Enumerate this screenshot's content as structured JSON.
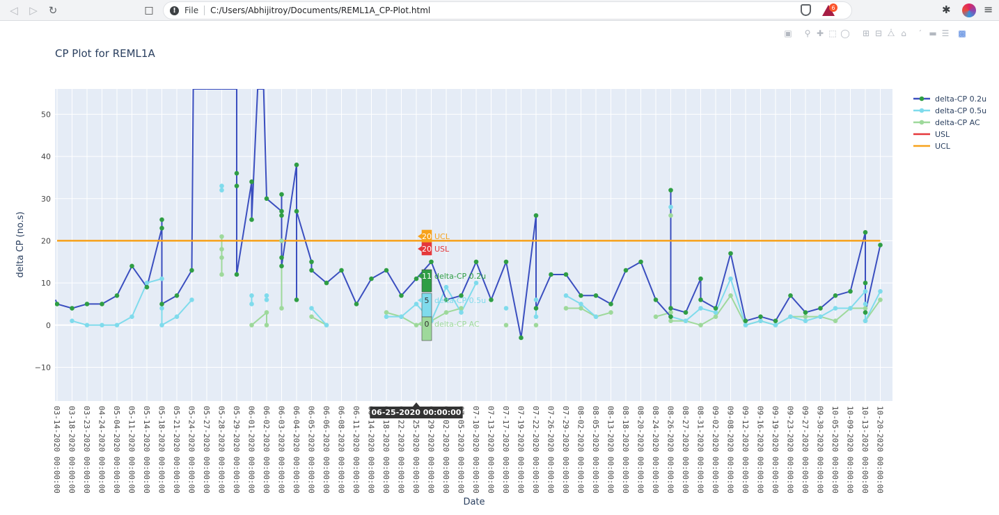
{
  "browser": {
    "back_icon": "arrow-left-icon",
    "forward_icon": "arrow-right-icon",
    "reload_icon": "reload-icon",
    "bookmark_icon": "bookmark-icon",
    "info_icon": "info-icon",
    "scheme_label": "File",
    "url": "C:/Users/Abhijitroy/Documents/REML1A_CP-Plot.html",
    "rewards_badge": "6"
  },
  "modebar": {
    "buttons": [
      "camera-icon",
      "zoom-icon",
      "pan-icon",
      "box-select-icon",
      "lasso-select-icon",
      "zoom-in-icon",
      "zoom-out-icon",
      "autoscale-icon",
      "reset-axes-icon",
      "spike-lines-icon",
      "hover-closest-icon",
      "hover-compare-icon",
      "plotly-logo-icon"
    ]
  },
  "plot": {
    "title": "CP Plot for REML1A",
    "hover_x_label": "06-25-2020 00:00:00"
  },
  "colors": {
    "delta_cp_02u": "#3a4ebf",
    "delta_cp_02u_marker": "#2f9e44",
    "delta_cp_05u": "#7fdbec",
    "delta_cp_ac": "#9ed99b",
    "usl": "#e5383b",
    "ucl": "#f7a21b",
    "plot_bg": "#e5ecf6"
  },
  "chart_data": {
    "type": "line",
    "title": "CP Plot for REML1A",
    "xlabel": "Date",
    "ylabel": "delta CP (no.s)",
    "ylim": [
      -18,
      56
    ],
    "yticks": [
      -10,
      0,
      10,
      20,
      30,
      40,
      50
    ],
    "grid": true,
    "legend_position": "top-right",
    "categories": [
      "03-14-2020 00:00:00",
      "03-18-2020 00:00:00",
      "03-23-2020 00:00:00",
      "04-24-2020 00:00:00",
      "05-04-2020 00:00:00",
      "05-11-2020 00:00:00",
      "05-14-2020 00:00:00",
      "05-18-2020 00:00:00",
      "05-21-2020 00:00:00",
      "05-24-2020 00:00:00",
      "05-27-2020 00:00:00",
      "05-28-2020 00:00:00",
      "05-29-2020 00:00:00",
      "06-01-2020 00:00:00",
      "06-02-2020 00:00:00",
      "06-03-2020 00:00:00",
      "06-04-2020 00:00:00",
      "06-05-2020 00:00:00",
      "06-06-2020 00:00:00",
      "06-08-2020 00:00:00",
      "06-11-2020 00:00:00",
      "06-14-2020 00:00:00",
      "06-18-2020 00:00:00",
      "06-22-2020 00:00:00",
      "06-25-2020 00:00:00",
      "06-29-2020 00:00:00",
      "07-02-2020 00:00:00",
      "07-05-2020 00:00:00",
      "07-10-2020 00:00:00",
      "07-13-2020 00:00:00",
      "07-17-2020 00:00:00",
      "07-19-2020 00:00:00",
      "07-22-2020 00:00:00",
      "07-26-2020 00:00:00",
      "07-29-2020 00:00:00",
      "08-02-2020 00:00:00",
      "08-05-2020 00:00:00",
      "08-13-2020 00:00:00",
      "08-18-2020 00:00:00",
      "08-20-2020 00:00:00",
      "08-24-2020 00:00:00",
      "08-26-2020 00:00:00",
      "08-27-2020 00:00:00",
      "08-31-2020 00:00:00",
      "09-02-2020 00:00:00",
      "09-08-2020 00:00:00",
      "09-12-2020 00:00:00",
      "09-16-2020 00:00:00",
      "09-19-2020 00:00:00",
      "09-23-2020 00:00:00",
      "09-27-2020 00:00:00",
      "09-30-2020 00:00:00",
      "10-05-2020 00:00:00",
      "10-09-2020 00:00:00",
      "10-13-2020 00:00:00",
      "10-20-2020 00:00:00"
    ],
    "x_extent": [
      -0.1,
      55.75
    ],
    "series": [
      {
        "name": "delta-CP 0.2u",
        "points": [
          [
            -0.1,
            6
          ],
          [
            0,
            5
          ],
          [
            1,
            4
          ],
          [
            2,
            5
          ],
          [
            3,
            5
          ],
          [
            4,
            7
          ],
          [
            5,
            14
          ],
          [
            6,
            9
          ],
          [
            7,
            23
          ],
          [
            7,
            25
          ],
          [
            7,
            5
          ],
          [
            8,
            7
          ],
          [
            9,
            13
          ],
          [
            9.1,
            56
          ],
          [
            12,
            56
          ],
          [
            12,
            36
          ],
          [
            12,
            33
          ],
          [
            12,
            12
          ],
          [
            13,
            34
          ],
          [
            13,
            25
          ],
          [
            13.4,
            56
          ],
          [
            13.8,
            56
          ],
          [
            14,
            30
          ],
          [
            15,
            27
          ],
          [
            15,
            31
          ],
          [
            15,
            26
          ],
          [
            15,
            16
          ],
          [
            15,
            14
          ],
          [
            16,
            38
          ],
          [
            16,
            6
          ],
          [
            16,
            27
          ],
          [
            17,
            15
          ],
          [
            17,
            13
          ],
          [
            18,
            10
          ],
          [
            19,
            13
          ],
          [
            20,
            5
          ],
          [
            21,
            11
          ],
          [
            22,
            13
          ],
          [
            23,
            7
          ],
          [
            24,
            11
          ],
          [
            25,
            15
          ],
          [
            26,
            6
          ],
          [
            27,
            7
          ],
          [
            28,
            15
          ],
          [
            29,
            6
          ],
          [
            30,
            15
          ],
          [
            31,
            -3
          ],
          [
            32,
            26
          ],
          [
            32,
            4
          ],
          [
            33,
            12
          ],
          [
            34,
            12
          ],
          [
            35,
            7
          ],
          [
            36,
            7
          ],
          [
            37,
            5
          ],
          [
            38,
            13
          ],
          [
            39,
            15
          ],
          [
            40,
            6
          ],
          [
            41,
            2
          ],
          [
            41,
            32
          ],
          [
            41,
            4
          ],
          [
            42,
            3
          ],
          [
            43,
            11
          ],
          [
            43,
            6
          ],
          [
            44,
            4
          ],
          [
            45,
            17
          ],
          [
            46,
            1
          ],
          [
            47,
            2
          ],
          [
            48,
            1
          ],
          [
            49,
            7
          ],
          [
            50,
            3
          ],
          [
            51,
            4
          ],
          [
            52,
            7
          ],
          [
            53,
            8
          ],
          [
            54,
            22
          ],
          [
            54,
            10
          ],
          [
            54,
            3
          ],
          [
            55,
            19
          ]
        ]
      },
      {
        "name": "delta-CP 0.5u",
        "points": [
          [
            1,
            1
          ],
          [
            2,
            0
          ],
          [
            3,
            0
          ],
          [
            4,
            0
          ],
          [
            5,
            2
          ],
          [
            6,
            10
          ],
          [
            7,
            11
          ],
          [
            7,
            4
          ],
          [
            7,
            0
          ],
          [
            8,
            2
          ],
          [
            9,
            6
          ],
          [
            null,
            null
          ],
          [
            11,
            33
          ],
          [
            11,
            32
          ],
          [
            null,
            null
          ],
          [
            13,
            7
          ],
          [
            13,
            5
          ],
          [
            null,
            null
          ],
          [
            14,
            7
          ],
          [
            14,
            6
          ],
          [
            null,
            null
          ],
          [
            17,
            4
          ],
          [
            18,
            0
          ],
          [
            null,
            null
          ],
          [
            22,
            2
          ],
          [
            23,
            2
          ],
          [
            24,
            5
          ],
          [
            25,
            1
          ],
          [
            26,
            9
          ],
          [
            27,
            3
          ],
          [
            28,
            10
          ],
          [
            null,
            null
          ],
          [
            30,
            4
          ],
          [
            null,
            null
          ],
          [
            32,
            6
          ],
          [
            32,
            2
          ],
          [
            null,
            null
          ],
          [
            34,
            7
          ],
          [
            35,
            5
          ],
          [
            36,
            2
          ],
          [
            null,
            null
          ],
          [
            41,
            28
          ],
          [
            41,
            2
          ],
          [
            42,
            1
          ],
          [
            43,
            4
          ],
          [
            44,
            3
          ],
          [
            45,
            11
          ],
          [
            46,
            0
          ],
          [
            47,
            1
          ],
          [
            48,
            0
          ],
          [
            49,
            2
          ],
          [
            50,
            1
          ],
          [
            51,
            2
          ],
          [
            52,
            4
          ],
          [
            53,
            4
          ],
          [
            54,
            8
          ],
          [
            54,
            5
          ],
          [
            54,
            1
          ],
          [
            55,
            8
          ]
        ]
      },
      {
        "name": "delta-CP AC",
        "points": [
          [
            11,
            21
          ],
          [
            11,
            18
          ],
          [
            11,
            16
          ],
          [
            11,
            12
          ],
          [
            null,
            null
          ],
          [
            13,
            0
          ],
          [
            14,
            3
          ],
          [
            14,
            0
          ],
          [
            null,
            null
          ],
          [
            15,
            20
          ],
          [
            15,
            4
          ],
          [
            null,
            null
          ],
          [
            17,
            2
          ],
          [
            18,
            0
          ],
          [
            null,
            null
          ],
          [
            22,
            3
          ],
          [
            23,
            2
          ],
          [
            24,
            0
          ],
          [
            25,
            1
          ],
          [
            26,
            3
          ],
          [
            27,
            4
          ],
          [
            null,
            null
          ],
          [
            30,
            0
          ],
          [
            null,
            null
          ],
          [
            32,
            0
          ],
          [
            null,
            null
          ],
          [
            34,
            4
          ],
          [
            35,
            4
          ],
          [
            36,
            2
          ],
          [
            37,
            3
          ],
          [
            null,
            null
          ],
          [
            40,
            2
          ],
          [
            41,
            3
          ],
          [
            41,
            26
          ],
          [
            41,
            1
          ],
          [
            42,
            1
          ],
          [
            43,
            0
          ],
          [
            44,
            2
          ],
          [
            45,
            7
          ],
          [
            46,
            0
          ],
          [
            47,
            1
          ],
          [
            48,
            0
          ],
          [
            49,
            2
          ],
          [
            50,
            2
          ],
          [
            51,
            2
          ],
          [
            52,
            1
          ],
          [
            53,
            4
          ],
          [
            54,
            4
          ],
          [
            54,
            1
          ],
          [
            55,
            6
          ]
        ]
      },
      {
        "name": "USL",
        "value": 20
      },
      {
        "name": "UCL",
        "value": 20
      }
    ],
    "hover": {
      "x": 24,
      "labels": [
        {
          "value": "20",
          "text": "UCL"
        },
        {
          "value": "20",
          "text": "USL"
        },
        {
          "value": "11",
          "text": "delta-CP 0.2u"
        },
        {
          "value": "5",
          "text": "delta-CP 0.5u"
        },
        {
          "value": "0",
          "text": "delta-CP AC"
        }
      ]
    }
  }
}
